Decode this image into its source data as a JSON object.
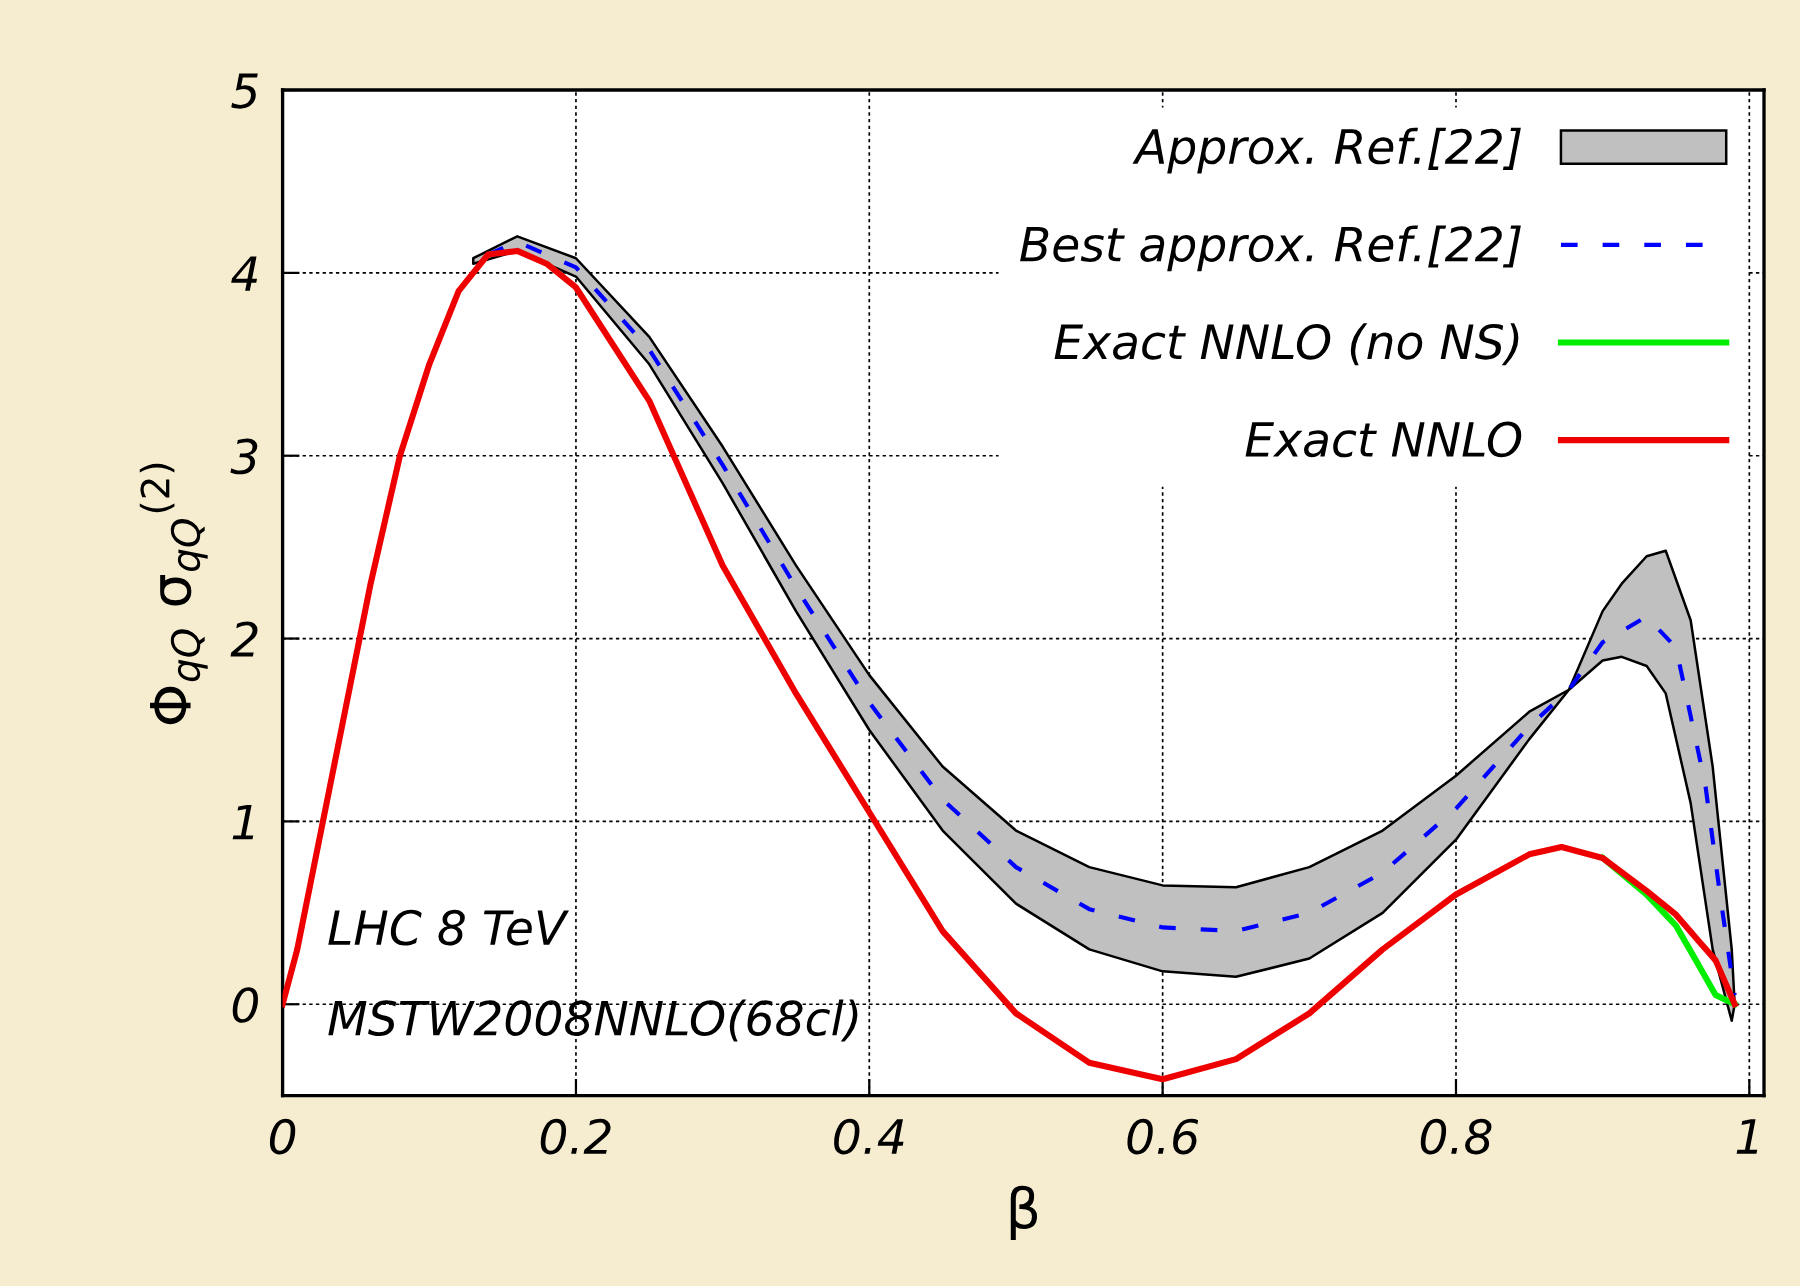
{
  "chart_data": {
    "type": "line",
    "xlabel": "β",
    "ylabel": "Φ$_{qQ}$ σ$_{qQ}$$^{(2)}$",
    "xlim": [
      0,
      1.01
    ],
    "ylim": [
      -0.5,
      5
    ],
    "xticks": [
      0,
      0.2,
      0.4,
      0.6,
      0.8,
      1
    ],
    "yticks": [
      0,
      1,
      2,
      3,
      4,
      5
    ],
    "grid": true,
    "legend": "top right",
    "annotations": [
      "LHC 8 TeV",
      "MSTW2008NNLO(68cl)"
    ],
    "series": [
      {
        "name": "Approx. Ref.[22]",
        "color": "#c0c0c0",
        "x": [
          0.13,
          0.16,
          0.2,
          0.25,
          0.3,
          0.35,
          0.4,
          0.45,
          0.5,
          0.55,
          0.6,
          0.65,
          0.7,
          0.75,
          0.8,
          0.85,
          0.877,
          0.9,
          0.913,
          0.93,
          0.943,
          0.96,
          0.975,
          0.988,
          0.99
        ],
        "values": [
          null,
          null,
          null,
          null,
          null,
          null,
          null,
          null,
          null,
          null,
          null,
          null,
          null,
          null,
          null,
          null,
          null,
          null,
          null,
          null,
          null,
          null,
          null,
          null,
          null
        ],
        "upper": [
          4.08,
          4.2,
          4.08,
          3.65,
          3.05,
          2.4,
          1.8,
          1.3,
          0.95,
          0.75,
          0.65,
          0.64,
          0.75,
          0.95,
          1.25,
          1.6,
          1.72,
          2.15,
          2.3,
          2.45,
          2.48,
          2.1,
          1.3,
          0.3,
          0.0
        ],
        "lower": [
          4.05,
          4.12,
          3.98,
          3.5,
          2.85,
          2.15,
          1.5,
          0.95,
          0.55,
          0.3,
          0.18,
          0.15,
          0.25,
          0.5,
          0.9,
          1.45,
          1.72,
          1.88,
          1.9,
          1.85,
          1.7,
          1.1,
          0.3,
          -0.09,
          0.0
        ]
      },
      {
        "name": "Best approx. Ref.[22]",
        "line_style": "dashed",
        "color": "#0000ff",
        "x": [
          0.14,
          0.16,
          0.2,
          0.25,
          0.3,
          0.35,
          0.4,
          0.45,
          0.5,
          0.55,
          0.6,
          0.65,
          0.7,
          0.75,
          0.8,
          0.85,
          0.877,
          0.9,
          0.93,
          0.95,
          0.97,
          0.98,
          0.99
        ],
        "values": [
          4.1,
          4.17,
          4.03,
          3.58,
          2.95,
          2.28,
          1.65,
          1.12,
          0.75,
          0.52,
          0.42,
          0.4,
          0.5,
          0.72,
          1.07,
          1.52,
          1.72,
          1.98,
          2.12,
          1.95,
          1.2,
          0.6,
          0.05
        ]
      },
      {
        "name": "Exact NNLO (no NS)",
        "line_style": "solid",
        "color": "#00ee00",
        "x": [
          0.9,
          0.93,
          0.95,
          0.965,
          0.977,
          0.99
        ],
        "values": [
          0.8,
          0.6,
          0.43,
          0.22,
          0.05,
          0.0
        ]
      },
      {
        "name": "Exact NNLO",
        "line_style": "solid",
        "color": "#ee0000",
        "x": [
          0,
          0.01,
          0.02,
          0.04,
          0.06,
          0.08,
          0.1,
          0.12,
          0.14,
          0.16,
          0.18,
          0.2,
          0.25,
          0.3,
          0.35,
          0.4,
          0.45,
          0.5,
          0.55,
          0.6,
          0.65,
          0.7,
          0.75,
          0.8,
          0.85,
          0.872,
          0.9,
          0.93,
          0.95,
          0.965,
          0.977,
          0.99
        ],
        "values": [
          0,
          0.3,
          0.7,
          1.5,
          2.3,
          3.0,
          3.5,
          3.9,
          4.1,
          4.12,
          4.05,
          3.92,
          3.3,
          2.4,
          1.7,
          1.05,
          0.4,
          -0.05,
          -0.32,
          -0.41,
          -0.3,
          -0.05,
          0.3,
          0.6,
          0.82,
          0.86,
          0.8,
          0.62,
          0.49,
          0.35,
          0.24,
          0.0
        ]
      }
    ]
  }
}
